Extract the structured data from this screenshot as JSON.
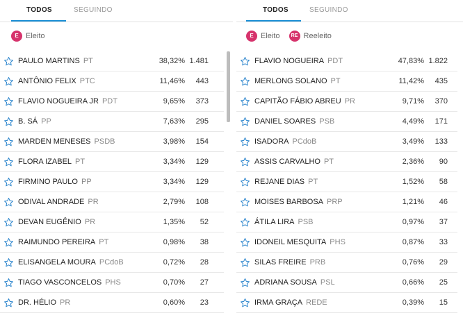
{
  "left": {
    "tabs": {
      "all": "TODOS",
      "following": "SEGUINDO"
    },
    "legend": {
      "elected_badge": "E",
      "elected_label": "Eleito"
    },
    "candidates": [
      {
        "name": "PAULO MARTINS",
        "party": "PT",
        "pct": "38,32%",
        "votes": "1.481"
      },
      {
        "name": "ANTÔNIO FELIX",
        "party": "PTC",
        "pct": "11,46%",
        "votes": "443"
      },
      {
        "name": "FLAVIO NOGUEIRA JR",
        "party": "PDT",
        "pct": "9,65%",
        "votes": "373"
      },
      {
        "name": "B. SÁ",
        "party": "PP",
        "pct": "7,63%",
        "votes": "295"
      },
      {
        "name": "MARDEN MENESES",
        "party": "PSDB",
        "pct": "3,98%",
        "votes": "154"
      },
      {
        "name": "FLORA IZABEL",
        "party": "PT",
        "pct": "3,34%",
        "votes": "129"
      },
      {
        "name": "FIRMINO PAULO",
        "party": "PP",
        "pct": "3,34%",
        "votes": "129"
      },
      {
        "name": "ODIVAL ANDRADE",
        "party": "PR",
        "pct": "2,79%",
        "votes": "108"
      },
      {
        "name": "DEVAN EUGÊNIO",
        "party": "PR",
        "pct": "1,35%",
        "votes": "52"
      },
      {
        "name": "RAIMUNDO PEREIRA",
        "party": "PT",
        "pct": "0,98%",
        "votes": "38"
      },
      {
        "name": "ELISANGELA MOURA",
        "party": "PCdoB",
        "pct": "0,72%",
        "votes": "28"
      },
      {
        "name": "TIAGO VASCONCELOS",
        "party": "PHS",
        "pct": "0,70%",
        "votes": "27"
      },
      {
        "name": "DR. HÉLIO",
        "party": "PR",
        "pct": "0,60%",
        "votes": "23"
      }
    ]
  },
  "right": {
    "tabs": {
      "all": "TODOS",
      "following": "SEGUINDO"
    },
    "legend": {
      "elected_badge": "E",
      "elected_label": "Eleito",
      "reelected_badge": "RE",
      "reelected_label": "Reeleito"
    },
    "candidates": [
      {
        "name": "FLAVIO NOGUEIRA",
        "party": "PDT",
        "pct": "47,83%",
        "votes": "1.822"
      },
      {
        "name": "MERLONG SOLANO",
        "party": "PT",
        "pct": "11,42%",
        "votes": "435"
      },
      {
        "name": "CAPITÃO FÁBIO ABREU",
        "party": "PR",
        "pct": "9,71%",
        "votes": "370"
      },
      {
        "name": "DANIEL SOARES",
        "party": "PSB",
        "pct": "4,49%",
        "votes": "171"
      },
      {
        "name": "ISADORA",
        "party": "PCdoB",
        "pct": "3,49%",
        "votes": "133"
      },
      {
        "name": "ASSIS CARVALHO",
        "party": "PT",
        "pct": "2,36%",
        "votes": "90"
      },
      {
        "name": "REJANE DIAS",
        "party": "PT",
        "pct": "1,52%",
        "votes": "58"
      },
      {
        "name": "MOISES BARBOSA",
        "party": "PRP",
        "pct": "1,21%",
        "votes": "46"
      },
      {
        "name": "ÁTILA LIRA",
        "party": "PSB",
        "pct": "0,97%",
        "votes": "37"
      },
      {
        "name": "IDONEIL MESQUITA",
        "party": "PHS",
        "pct": "0,87%",
        "votes": "33"
      },
      {
        "name": "SILAS FREIRE",
        "party": "PRB",
        "pct": "0,76%",
        "votes": "29"
      },
      {
        "name": "ADRIANA SOUSA",
        "party": "PSL",
        "pct": "0,66%",
        "votes": "25"
      },
      {
        "name": "IRMA GRAÇA",
        "party": "REDE",
        "pct": "0,39%",
        "votes": "15"
      }
    ]
  },
  "colors": {
    "accent": "#1a8fd6",
    "badge": "#d6336c",
    "star": "#2a84cc"
  }
}
